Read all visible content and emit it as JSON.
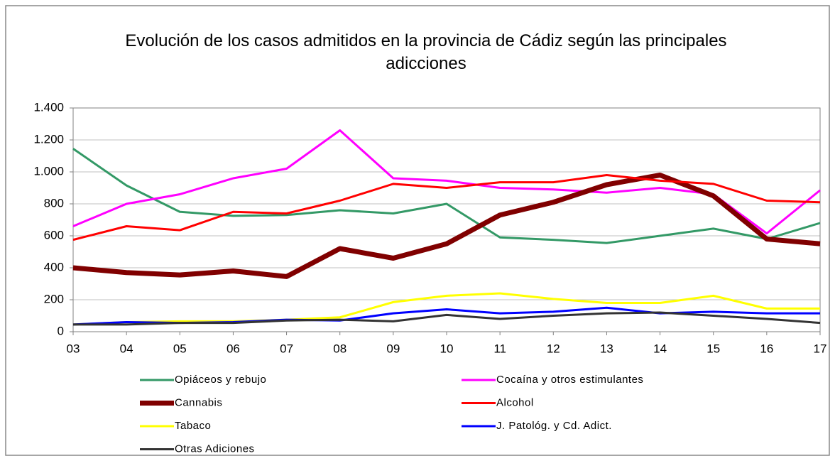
{
  "chart_data": {
    "type": "line",
    "title": "Evolución de los casos admitidos en la provincia de Cádiz según las principales adicciones",
    "categories": [
      "03",
      "04",
      "05",
      "06",
      "07",
      "08",
      "09",
      "10",
      "11",
      "12",
      "13",
      "14",
      "15",
      "16",
      "17"
    ],
    "ylim": [
      0,
      1400
    ],
    "yticks": [
      0,
      200,
      400,
      600,
      800,
      {
        "value": 1000,
        "label": "1.000"
      },
      {
        "value": 1200,
        "label": "1.200"
      },
      {
        "value": 1400,
        "label": "1.400"
      }
    ],
    "grid": true,
    "legend": "bottom",
    "series": [
      {
        "name": "Opiáceos y rebujo",
        "color": "#339966",
        "line_width": 3,
        "values": [
          1145,
          915,
          750,
          725,
          730,
          760,
          740,
          800,
          590,
          575,
          555,
          600,
          645,
          580,
          680
        ]
      },
      {
        "name": "Cocaína y otros estimulantes",
        "color": "#ff00ff",
        "line_width": 3,
        "values": [
          660,
          800,
          860,
          960,
          1020,
          1260,
          960,
          945,
          900,
          890,
          870,
          900,
          860,
          615,
          885
        ]
      },
      {
        "name": "Cannabis",
        "color": "#800000",
        "line_width": 7,
        "values": [
          400,
          370,
          355,
          380,
          345,
          520,
          460,
          550,
          730,
          810,
          920,
          980,
          850,
          580,
          550
        ]
      },
      {
        "name": "Alcohol",
        "color": "#ff0000",
        "line_width": 3,
        "values": [
          575,
          660,
          635,
          750,
          740,
          820,
          925,
          900,
          935,
          935,
          980,
          945,
          925,
          820,
          810
        ]
      },
      {
        "name": "Tabaco",
        "color": "#ffff00",
        "line_width": 3,
        "values": [
          45,
          60,
          65,
          65,
          75,
          90,
          185,
          225,
          240,
          205,
          180,
          180,
          225,
          145,
          145
        ]
      },
      {
        "name": "J. Patológ. y Cd. Adict.",
        "color": "#0000ff",
        "line_width": 3,
        "values": [
          45,
          60,
          55,
          60,
          75,
          70,
          115,
          140,
          115,
          125,
          150,
          115,
          125,
          115,
          115
        ]
      },
      {
        "name": "Otras Adiciones",
        "color": "#333333",
        "line_width": 3,
        "values": [
          45,
          45,
          55,
          55,
          70,
          75,
          65,
          105,
          80,
          100,
          115,
          120,
          100,
          80,
          55
        ]
      }
    ]
  }
}
